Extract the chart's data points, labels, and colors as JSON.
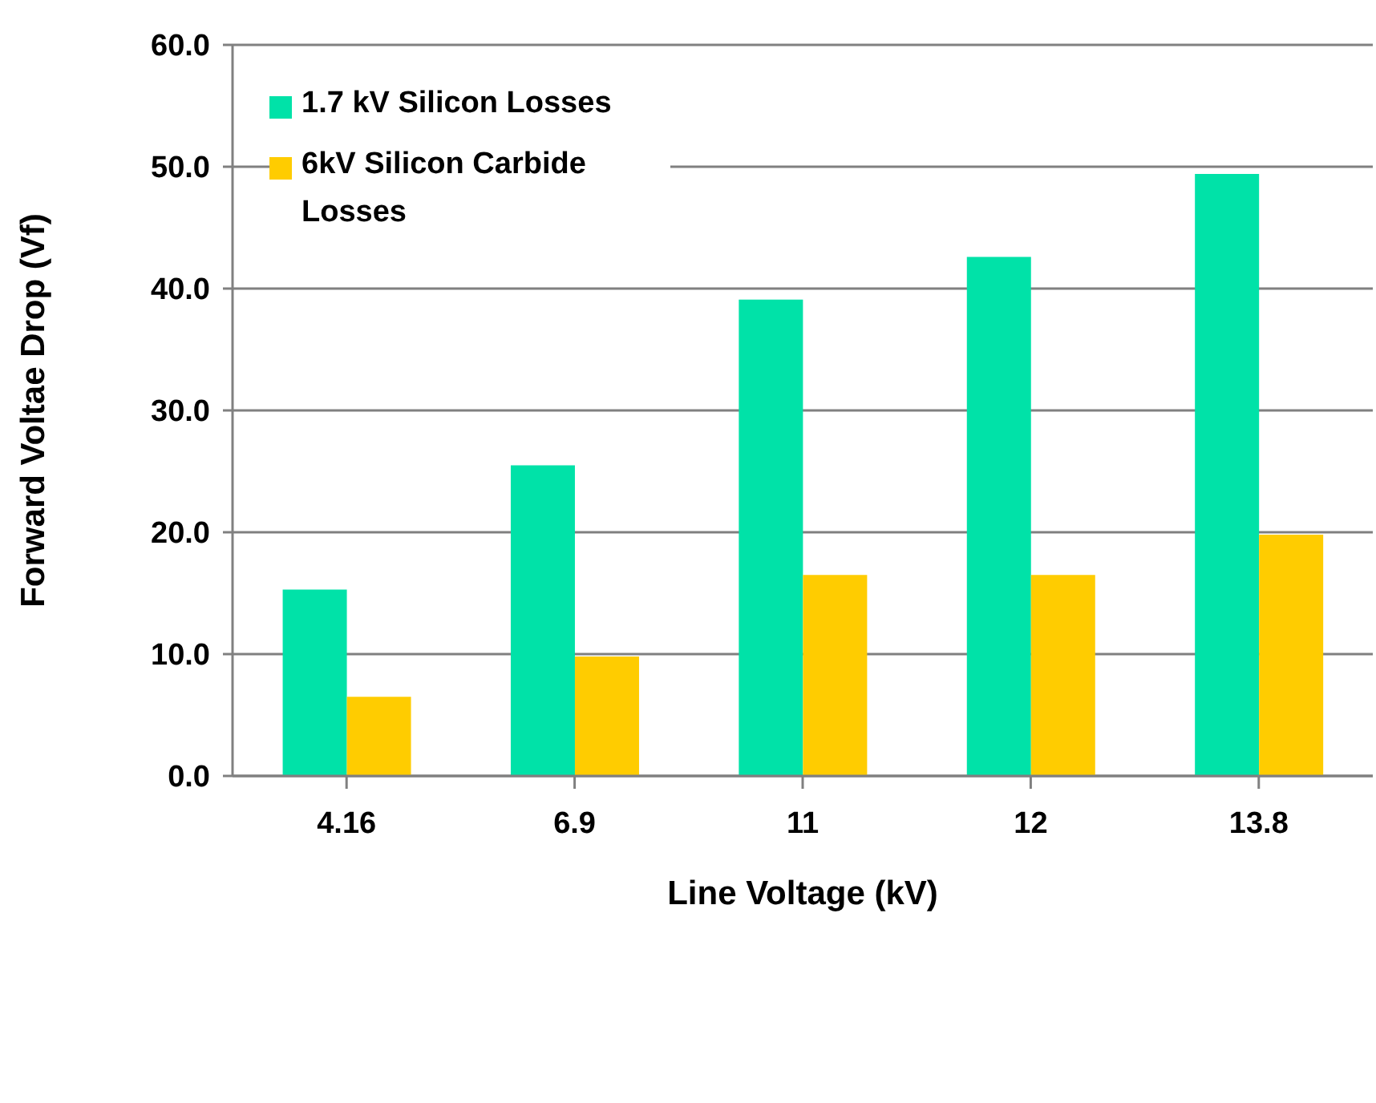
{
  "chart_data": {
    "type": "bar",
    "xlabel": "Line Voltage (kV)",
    "ylabel": "Forward Voltae Drop (Vf)",
    "categories": [
      "4.16",
      "6.9",
      "11",
      "12",
      "13.8"
    ],
    "series": [
      {
        "name": "1.7 kV Silicon Losses",
        "color": "#00e2a8",
        "values": [
          15.3,
          25.5,
          39.1,
          42.6,
          49.4
        ]
      },
      {
        "name": "6kV Silicon Carbide Losses",
        "color": "#ffcc00",
        "values": [
          6.5,
          9.8,
          16.5,
          16.5,
          19.8
        ]
      }
    ],
    "ylim": [
      0,
      60
    ],
    "yticks": [
      {
        "value": 0,
        "label": "0.0"
      },
      {
        "value": 10,
        "label": "10.0"
      },
      {
        "value": 20,
        "label": "20.0"
      },
      {
        "value": 30,
        "label": "30.0"
      },
      {
        "value": 40,
        "label": "40.0"
      },
      {
        "value": 50,
        "label": "50.0"
      },
      {
        "value": 60,
        "label": "60.0"
      }
    ],
    "grid": "y",
    "legend": "top left"
  }
}
